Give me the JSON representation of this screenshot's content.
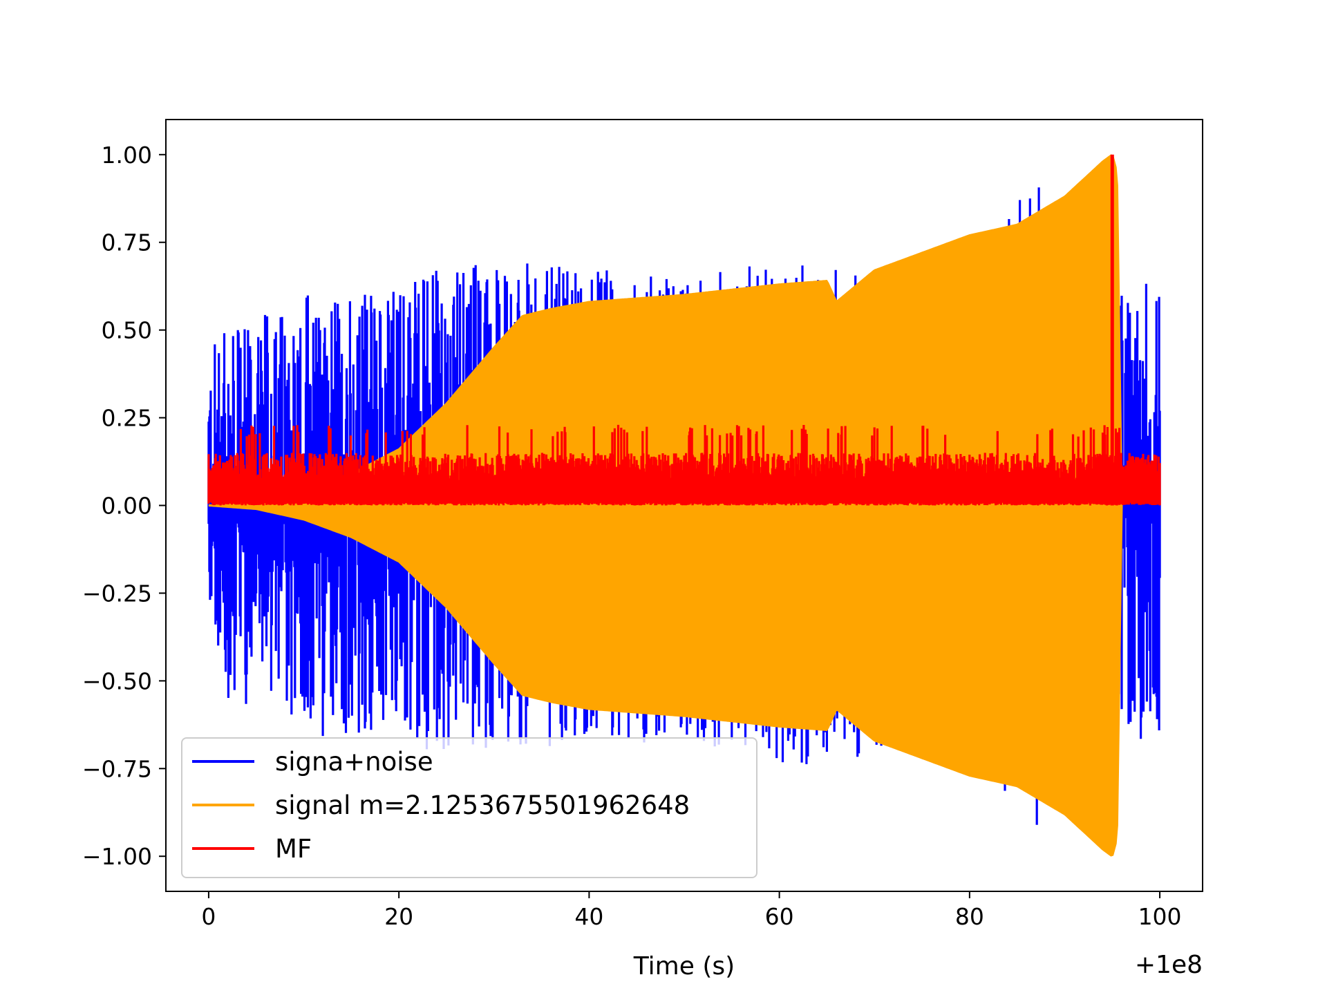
{
  "chart_data": {
    "type": "line",
    "title": "",
    "xlabel": "Time (s)",
    "ylabel": "",
    "x_offset_label": "+1e8",
    "xlim": [
      -4.5,
      104.5
    ],
    "ylim": [
      -1.1,
      1.1
    ],
    "x_ticks": [
      0,
      20,
      40,
      60,
      80,
      100
    ],
    "x_tick_labels": [
      "0",
      "20",
      "40",
      "60",
      "80",
      "100"
    ],
    "y_ticks": [
      -1.0,
      -0.75,
      -0.5,
      -0.25,
      0.0,
      0.25,
      0.5,
      0.75,
      1.0
    ],
    "y_tick_labels": [
      "−1.00",
      "−0.75",
      "−0.50",
      "−0.25",
      "0.00",
      "0.25",
      "0.50",
      "0.75",
      "1.00"
    ],
    "grid": false,
    "legend_position": "lower-left",
    "series": [
      {
        "name": "signa+noise",
        "color": "#0000ff",
        "envelope": {
          "x": [
            0,
            2,
            10,
            20,
            30,
            40,
            50,
            60,
            70,
            80,
            87,
            90,
            95,
            96,
            100
          ],
          "upper": [
            0.47,
            0.5,
            0.6,
            0.65,
            0.7,
            0.68,
            0.65,
            0.7,
            0.66,
            0.62,
            1.0,
            0.72,
            0.7,
            0.6,
            0.66
          ],
          "lower": [
            -0.35,
            -0.55,
            -0.65,
            -0.7,
            -0.7,
            -0.68,
            -0.68,
            -0.75,
            -0.72,
            -0.7,
            -0.92,
            -0.6,
            -0.55,
            -0.6,
            -0.75
          ]
        }
      },
      {
        "name": "signal m=2.1253675501962648",
        "color": "#ffa500",
        "envelope": {
          "x": [
            0,
            5,
            10,
            15,
            20,
            25,
            30,
            33,
            36,
            40,
            50,
            60,
            65,
            66,
            70,
            80,
            85,
            90,
            94,
            95,
            95.5,
            96
          ],
          "amplitude": [
            0.0,
            0.01,
            0.04,
            0.09,
            0.16,
            0.29,
            0.45,
            0.54,
            0.56,
            0.58,
            0.6,
            0.63,
            0.64,
            0.58,
            0.67,
            0.77,
            0.8,
            0.88,
            0.98,
            1.0,
            0.95,
            0.0
          ]
        }
      },
      {
        "name": "MF",
        "color": "#ff0000",
        "band": {
          "x": [
            0,
            100
          ],
          "lower": 0.0,
          "upper_typical": 0.15,
          "upper_max": 0.23
        },
        "peak": {
          "x": 95.0,
          "y": 1.0
        }
      }
    ]
  }
}
